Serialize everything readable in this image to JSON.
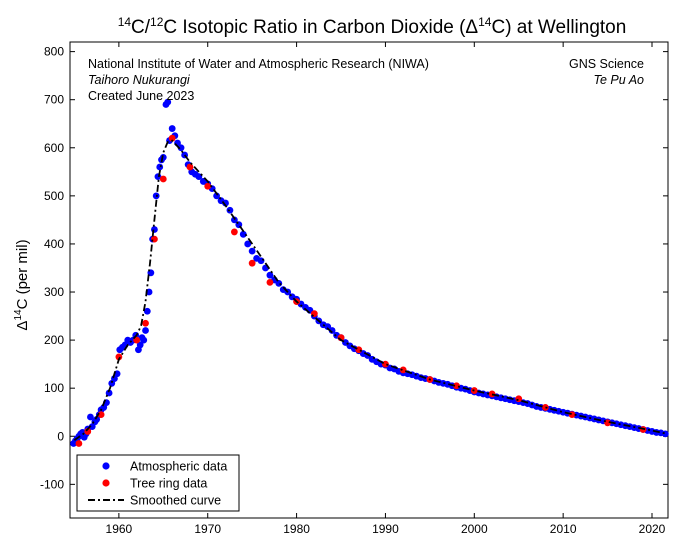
{
  "chart_data": {
    "type": "scatter",
    "title": {
      "pre": "14",
      "a": "C/",
      "sup2": "12",
      "b": "C Isotopic Ratio in Carbon Dioxide (Δ",
      "sup3": "14",
      "c": "C) at Wellington"
    },
    "ylabel": {
      "delta": "Δ",
      "sup": "14",
      "rest": "C (per mil)"
    },
    "xlabel": "",
    "xlim": [
      1954.5,
      2021.8
    ],
    "ylim": [
      -170,
      820
    ],
    "xticks": [
      1960,
      1970,
      1980,
      1990,
      2000,
      2010,
      2020
    ],
    "yticks": [
      -100,
      0,
      100,
      200,
      300,
      400,
      500,
      600,
      700,
      800
    ],
    "grid": false,
    "legend_position": "bottom-left",
    "annotations": {
      "left_line1": "National Institute of Water and Atmospheric Research (NIWA)",
      "left_line2": "Taihoro Nukurangi",
      "left_line3": "Created June 2023",
      "right_line1": "GNS Science",
      "right_line2": "Te Pu Ao"
    },
    "colors": {
      "atmospheric": "#0000ff",
      "tree_ring": "#ff0000",
      "smoothed": "#000000"
    },
    "series": [
      {
        "name": "Atmospheric data",
        "marker": "dot",
        "x": [
          1954.9,
          1955.1,
          1955.3,
          1955.5,
          1955.7,
          1955.9,
          1956.1,
          1956.3,
          1956.5,
          1956.8,
          1957.0,
          1957.3,
          1957.5,
          1957.8,
          1958.0,
          1958.3,
          1958.6,
          1958.9,
          1959.2,
          1959.5,
          1959.8,
          1960.1,
          1960.4,
          1960.7,
          1961.0,
          1961.3,
          1961.6,
          1961.9,
          1962.2,
          1962.4,
          1962.6,
          1962.8,
          1963.0,
          1963.2,
          1963.4,
          1963.6,
          1963.8,
          1964.0,
          1964.2,
          1964.4,
          1964.6,
          1964.8,
          1965.0,
          1965.3,
          1965.5,
          1965.7,
          1966.0,
          1966.3,
          1966.6,
          1967.0,
          1967.4,
          1967.8,
          1968.2,
          1968.6,
          1969.0,
          1969.5,
          1970.0,
          1970.5,
          1971.0,
          1971.5,
          1972.0,
          1972.5,
          1973.0,
          1973.5,
          1974.0,
          1974.5,
          1975.0,
          1975.5,
          1976.0,
          1976.5,
          1977.0,
          1977.5,
          1978.0,
          1978.5,
          1979.0,
          1979.5,
          1980.0,
          1980.5,
          1981.0,
          1981.5,
          1982.0,
          1982.5,
          1983.0,
          1983.5,
          1984.0,
          1984.5,
          1985.0,
          1985.5,
          1986.0,
          1986.5,
          1987.0,
          1987.5,
          1988.0,
          1988.5,
          1989.0,
          1989.5,
          1990.0,
          1990.5,
          1991.0,
          1991.5,
          1992.0,
          1992.5,
          1993.0,
          1993.5,
          1994.0,
          1994.5,
          1995.0,
          1995.5,
          1996.0,
          1996.5,
          1997.0,
          1997.5,
          1998.0,
          1998.5,
          1999.0,
          1999.5,
          2000.0,
          2000.5,
          2001.0,
          2001.5,
          2002.0,
          2002.5,
          2003.0,
          2003.5,
          2004.0,
          2004.5,
          2005.0,
          2005.5,
          2006.0,
          2006.5,
          2007.0,
          2007.5,
          2008.0,
          2008.5,
          2009.0,
          2009.5,
          2010.0,
          2010.5,
          2011.0,
          2011.5,
          2012.0,
          2012.5,
          2013.0,
          2013.5,
          2014.0,
          2014.5,
          2015.0,
          2015.5,
          2016.0,
          2016.5,
          2017.0,
          2017.5,
          2018.0,
          2018.5,
          2019.0,
          2019.5,
          2020.0,
          2020.5,
          2021.0,
          2021.5
        ],
        "y": [
          -15,
          -10,
          -5,
          0,
          5,
          8,
          -2,
          5,
          15,
          40,
          20,
          30,
          35,
          45,
          55,
          60,
          70,
          90,
          110,
          120,
          130,
          180,
          185,
          190,
          200,
          195,
          200,
          210,
          180,
          190,
          205,
          200,
          220,
          260,
          300,
          340,
          410,
          430,
          500,
          540,
          560,
          575,
          580,
          690,
          695,
          615,
          640,
          625,
          610,
          600,
          585,
          565,
          550,
          545,
          540,
          530,
          525,
          515,
          500,
          490,
          485,
          470,
          450,
          440,
          420,
          400,
          385,
          370,
          365,
          350,
          335,
          325,
          318,
          305,
          300,
          290,
          285,
          275,
          268,
          262,
          250,
          240,
          232,
          228,
          220,
          210,
          205,
          195,
          188,
          182,
          178,
          172,
          168,
          160,
          155,
          150,
          148,
          142,
          140,
          135,
          132,
          130,
          128,
          125,
          122,
          120,
          118,
          115,
          112,
          110,
          108,
          105,
          102,
          100,
          98,
          95,
          92,
          90,
          88,
          86,
          84,
          82,
          80,
          78,
          76,
          74,
          72,
          70,
          68,
          65,
          62,
          60,
          58,
          56,
          54,
          52,
          50,
          48,
          46,
          44,
          42,
          40,
          38,
          36,
          34,
          32,
          30,
          28,
          26,
          24,
          22,
          20,
          18,
          16,
          14,
          12,
          10,
          8,
          7,
          5
        ]
      },
      {
        "name": "Tree ring data",
        "marker": "dot",
        "x": [
          1955.5,
          1956.5,
          1958.0,
          1960.0,
          1962.0,
          1963.0,
          1964.0,
          1965.0,
          1966.0,
          1968.0,
          1970.0,
          1973.0,
          1975.0,
          1977.0,
          1980.0,
          1982.0,
          1985.0,
          1987.0,
          1990.0,
          1992.0,
          1995.0,
          1998.0,
          2000.0,
          2002.0,
          2005.0,
          2008.0,
          2011.0,
          2015.0,
          2019.0
        ],
        "y": [
          -15,
          10,
          45,
          165,
          200,
          235,
          410,
          535,
          620,
          560,
          520,
          425,
          360,
          320,
          280,
          255,
          205,
          180,
          150,
          138,
          118,
          105,
          95,
          88,
          78,
          60,
          45,
          28,
          14
        ]
      },
      {
        "name": "Smoothed curve",
        "marker": "dashdot",
        "x": [
          1955.0,
          1956.0,
          1957.0,
          1958.0,
          1959.0,
          1960.0,
          1961.0,
          1962.0,
          1962.5,
          1963.0,
          1963.5,
          1964.0,
          1964.5,
          1965.0,
          1965.5,
          1966.0,
          1967.0,
          1968.0,
          1970.0,
          1972.0,
          1975.0,
          1978.0,
          1980.0,
          1985.0,
          1990.0,
          1995.0,
          2000.0,
          2005.0,
          2010.0,
          2015.0,
          2020.0,
          2021.5
        ],
        "y": [
          -8,
          5,
          25,
          55,
          100,
          160,
          190,
          210,
          230,
          280,
          360,
          450,
          540,
          590,
          612,
          615,
          595,
          570,
          530,
          480,
          400,
          320,
          280,
          200,
          150,
          118,
          95,
          75,
          50,
          30,
          12,
          6
        ]
      }
    ]
  }
}
